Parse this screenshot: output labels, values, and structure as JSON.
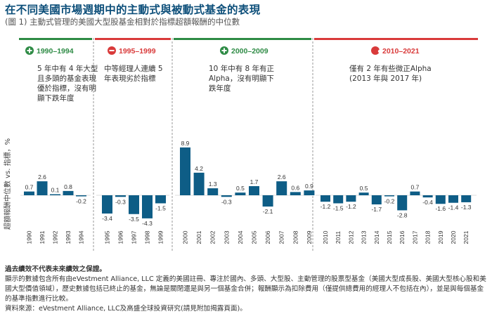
{
  "title": "在不同美國市場週期中的主動式與被動式基金的表現",
  "subtitle": "(圖 1) 主動式管理的美國大型股基金相對於指標超額報酬的中位數",
  "colors": {
    "bar": "#0e5d86",
    "positive": "#2e8b45",
    "negative": "#d93a3a"
  },
  "periods": [
    {
      "range": "1990–1994",
      "icon": "plus-circle-icon",
      "tone": "positive",
      "desc": [
        "5 年中有 4 年大型",
        "且多頭的基金表現",
        "優於指標，沒有明",
        "顯下跌年度"
      ]
    },
    {
      "range": "1995–1999",
      "icon": "minus-circle-icon",
      "tone": "negative",
      "desc": [
        "中等經理人連續 5",
        "年表現劣於指標"
      ]
    },
    {
      "range": "2000–2009",
      "icon": "plus-circle-icon",
      "tone": "positive",
      "desc": [
        "10 年中有 8 年有正",
        "Alpha，沒有明顯下",
        "跌年度"
      ]
    },
    {
      "range": "2010–2021",
      "icon": "partial-circle-icon",
      "tone": "negative",
      "desc": [
        "僅有 2 年有些微正Alpha",
        "(2013 年與 2017 年)"
      ]
    }
  ],
  "chart_data": {
    "type": "bar",
    "title": "在不同美國市場週期中的主動式與被動式基金的表現",
    "subtitle": "(圖 1) 主動式管理的美國大型股基金相對於指標超額報酬的中位數",
    "xlabel": "",
    "ylabel": "超額報酬中位數 vs. 指標，%",
    "ylim": [
      -5,
      10
    ],
    "grid": false,
    "legend": "none",
    "groups": [
      {
        "label": "1990–1994",
        "categories": [
          "1990",
          "1991",
          "1992",
          "1993",
          "1994"
        ],
        "values": [
          0.7,
          2.6,
          0.1,
          0.8,
          -0.2
        ],
        "labels": [
          "0.7",
          "2.6",
          "0.1",
          "0.8",
          "-0.2"
        ]
      },
      {
        "label": "1995–1999",
        "categories": [
          "1995",
          "1996",
          "1997",
          "1998",
          "1999"
        ],
        "values": [
          -3.4,
          -0.3,
          -3.5,
          -4.3,
          -1.5
        ],
        "labels": [
          "-3.4",
          "-0.3",
          "-3.5",
          "-4.3",
          "-1.5"
        ]
      },
      {
        "label": "2000–2009",
        "categories": [
          "2000",
          "2001",
          "2002",
          "2003",
          "2004",
          "2005",
          "2006",
          "2007",
          "2008",
          "2009"
        ],
        "values": [
          8.9,
          4.2,
          1.3,
          -0.3,
          0.5,
          1.7,
          -2.1,
          2.6,
          0.6,
          0.9
        ],
        "labels": [
          "8.9",
          "4.2",
          "1.3",
          "-0.3",
          "0.5",
          "1.7",
          "-2.1",
          "2.6",
          "0.6",
          "0.9"
        ]
      },
      {
        "label": "2010–2021",
        "categories": [
          "2010",
          "2011",
          "2012",
          "2013",
          "2014",
          "2015",
          "2016",
          "2017",
          "2018",
          "2019",
          "2020",
          "2021"
        ],
        "values": [
          -1.2,
          -1.5,
          -1.2,
          0.5,
          -1.7,
          -0.2,
          -2.8,
          0.7,
          -0.4,
          -1.6,
          -1.4,
          -1.3
        ],
        "labels": [
          "-1.2",
          "-1.5",
          "-1.2",
          "0.5",
          "-1.7",
          "-0.2",
          "-2.8",
          "0.7",
          "-0.4",
          "-1.6",
          "-1.4",
          "-1.3"
        ]
      }
    ]
  },
  "footnotes": {
    "disclaimer": "過去績效不代表未來績效之保證。",
    "line1": "顯示的數據包含所有由eVestment Alliance, LLC 定義的美國註冊、專注於國內、多頭、大型股、主動管理的股票型基金（美國大型成長股、美國大型核心股和美國大型價值領域），歷史數據包括已終止的基金，無論是關閉還是與另一個基金合併；報酬顯示為扣除費用（僅提供總費用的經理人不包括在內），並是與每個基金的基準指數進行比較。",
    "source": "資料來源：eVestment Alliance, LLC及高盛全球投資研究(請見附加揭露頁面)。"
  }
}
